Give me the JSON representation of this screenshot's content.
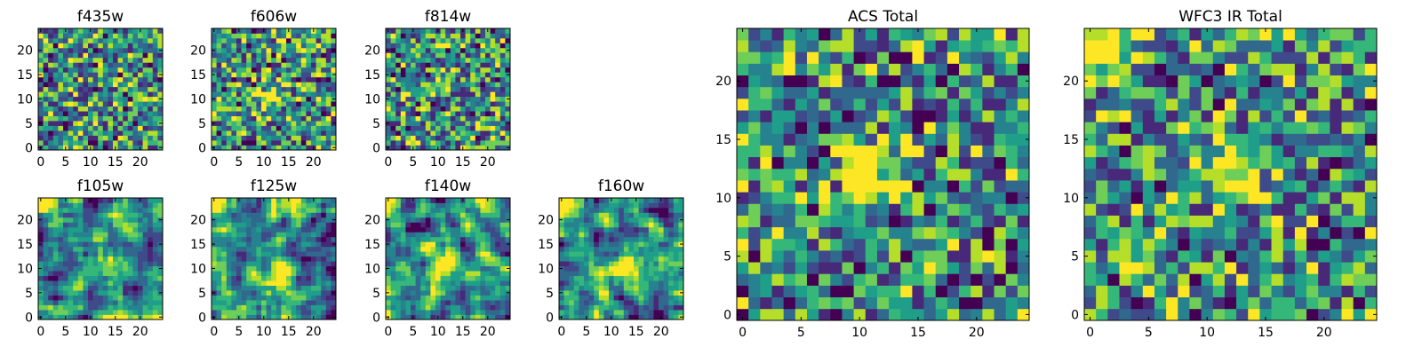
{
  "colors": {
    "viridis": [
      "#440154",
      "#482878",
      "#3e4a89",
      "#31688e",
      "#26828e",
      "#1f9e89",
      "#35b779",
      "#6ece58",
      "#b5de2b",
      "#fde725"
    ]
  },
  "chart_data": [
    {
      "type": "heatmap",
      "id": "f435w",
      "title": "f435w",
      "grid": [
        25,
        25
      ],
      "xticks": [
        "0",
        "5",
        "10",
        "15",
        "20"
      ],
      "yticks": [
        "0",
        "5",
        "10",
        "15",
        "20"
      ],
      "xlim": [
        -0.5,
        24.5
      ],
      "ylim": [
        -0.5,
        24.5
      ],
      "pattern": "noise",
      "peak": null,
      "colormap": "viridis"
    },
    {
      "type": "heatmap",
      "id": "f606w",
      "title": "f606w",
      "grid": [
        25,
        25
      ],
      "xticks": [
        "0",
        "5",
        "10",
        "15",
        "20"
      ],
      "yticks": [
        "0",
        "5",
        "10",
        "15",
        "20"
      ],
      "xlim": [
        -0.5,
        24.5
      ],
      "ylim": [
        -0.5,
        24.5
      ],
      "pattern": "faint-center",
      "peak": [
        12,
        11
      ],
      "colormap": "viridis"
    },
    {
      "type": "heatmap",
      "id": "f814w",
      "title": "f814w",
      "grid": [
        25,
        25
      ],
      "xticks": [
        "0",
        "5",
        "10",
        "15",
        "20"
      ],
      "yticks": [
        "0",
        "5",
        "10",
        "15",
        "20"
      ],
      "xlim": [
        -0.5,
        24.5
      ],
      "ylim": [
        -0.5,
        24.5
      ],
      "pattern": "noise",
      "peak": null,
      "colormap": "viridis"
    },
    {
      "type": "heatmap",
      "id": "f105w",
      "title": "f105w",
      "grid": [
        25,
        25
      ],
      "xticks": [
        "0",
        "5",
        "10",
        "15",
        "20"
      ],
      "yticks": [
        "0",
        "5",
        "10",
        "15",
        "20"
      ],
      "xlim": [
        -0.5,
        24.5
      ],
      "ylim": [
        -0.5,
        24.5
      ],
      "pattern": "smooth",
      "peak": [
        14,
        11
      ],
      "colormap": "viridis"
    },
    {
      "type": "heatmap",
      "id": "f125w",
      "title": "f125w",
      "grid": [
        25,
        25
      ],
      "xticks": [
        "0",
        "5",
        "10",
        "15",
        "20"
      ],
      "yticks": [
        "0",
        "5",
        "10",
        "15",
        "20"
      ],
      "xlim": [
        -0.5,
        24.5
      ],
      "ylim": [
        -0.5,
        24.5
      ],
      "pattern": "smooth",
      "peak": [
        13,
        11
      ],
      "colormap": "viridis"
    },
    {
      "type": "heatmap",
      "id": "f140w",
      "title": "f140w",
      "grid": [
        25,
        25
      ],
      "xticks": [
        "0",
        "5",
        "10",
        "15",
        "20"
      ],
      "yticks": [
        "0",
        "5",
        "10",
        "15",
        "20"
      ],
      "xlim": [
        -0.5,
        24.5
      ],
      "ylim": [
        -0.5,
        24.5
      ],
      "pattern": "smooth",
      "peak": [
        12,
        11
      ],
      "colormap": "viridis"
    },
    {
      "type": "heatmap",
      "id": "f160w",
      "title": "f160w",
      "grid": [
        25,
        25
      ],
      "xticks": [
        "0",
        "5",
        "10",
        "15",
        "20"
      ],
      "yticks": [
        "0",
        "5",
        "10",
        "15",
        "20"
      ],
      "xlim": [
        -0.5,
        24.5
      ],
      "ylim": [
        -0.5,
        24.5
      ],
      "pattern": "smooth",
      "peak": [
        12,
        10
      ],
      "colormap": "viridis"
    },
    {
      "type": "heatmap",
      "id": "acs-total",
      "title": "ACS Total",
      "grid": [
        25,
        25
      ],
      "xticks": [
        "0",
        "5",
        "10",
        "15",
        "20"
      ],
      "yticks": [
        "0",
        "5",
        "10",
        "15",
        "20"
      ],
      "xlim": [
        -0.5,
        24.5
      ],
      "ylim": [
        -0.5,
        24.5
      ],
      "pattern": "center",
      "peak": [
        11,
        12
      ],
      "colormap": "viridis"
    },
    {
      "type": "heatmap",
      "id": "wfc3-ir-total",
      "title": "WFC3 IR Total",
      "grid": [
        25,
        25
      ],
      "xticks": [
        "0",
        "5",
        "10",
        "15",
        "20"
      ],
      "yticks": [
        "0",
        "5",
        "10",
        "15",
        "20"
      ],
      "xlim": [
        -0.5,
        24.5
      ],
      "ylim": [
        -0.5,
        24.5
      ],
      "pattern": "center-corner",
      "peak": [
        12,
        12
      ],
      "colormap": "viridis"
    }
  ]
}
